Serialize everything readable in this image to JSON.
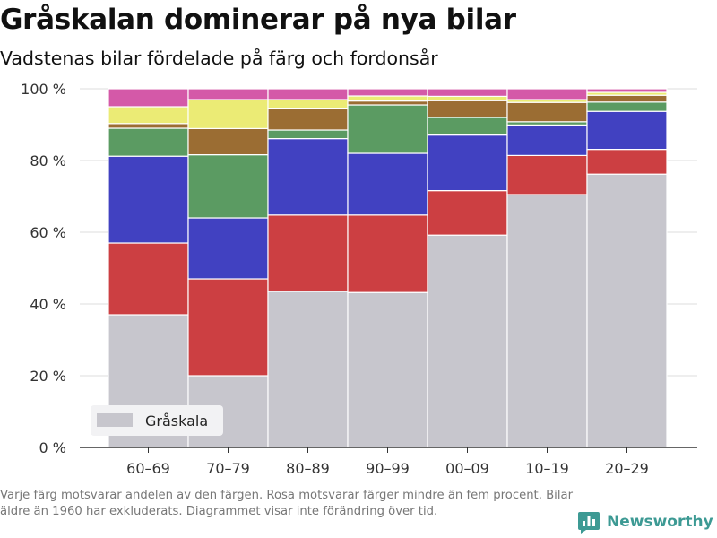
{
  "title": "Gråskalan dominerar på nya bilar",
  "subtitle": "Vadstenas bilar fördelade på färg och fordonsår",
  "footnote": "Varje färg motsvarar andelen av den färgen. Rosa motsvarar färger mindre än fem procent. Bilar äldre än 1960 har exkluderats. Diagrammet visar inte förändring över tid.",
  "brand": {
    "name": "Newsworthy",
    "icon": "newsworthy-logo-icon",
    "color": "#3d9a94"
  },
  "chart_data": {
    "type": "bar",
    "stacked": true,
    "normalized": true,
    "categories": [
      "60–69",
      "70–79",
      "80–89",
      "90–99",
      "00–09",
      "10–19",
      "20–29"
    ],
    "yticks": [
      "0 %",
      "20 %",
      "40 %",
      "60 %",
      "80 %",
      "100 %"
    ],
    "ylim": [
      0,
      100
    ],
    "grid": true,
    "legend_position": "bottom-left",
    "legend": [
      "Gråskala"
    ],
    "series": [
      {
        "name": "Gråskala",
        "color": "#c7c6cd",
        "values": [
          37,
          20,
          43.5,
          43.2,
          59.2,
          70.5,
          76.2
        ]
      },
      {
        "color": "#cc3f42",
        "values": [
          20,
          27,
          21.3,
          21.6,
          12.4,
          10.9,
          6.9
        ]
      },
      {
        "color": "#4141c1",
        "values": [
          24.2,
          17,
          21.3,
          17.2,
          15.5,
          8.5,
          10.6
        ]
      },
      {
        "color": "#5b9b62",
        "values": [
          7.8,
          17.6,
          2.4,
          13.5,
          4.9,
          0.9,
          2.6
        ]
      },
      {
        "color": "#9b6d33",
        "values": [
          1.3,
          7.3,
          5.9,
          1.1,
          4.7,
          5.4,
          1.9
        ]
      },
      {
        "color": "#ebeb75",
        "values": [
          4.7,
          8.1,
          2.6,
          1.4,
          1.2,
          0.8,
          0.8
        ]
      },
      {
        "color": "#d459a8",
        "values": [
          5,
          3,
          3,
          2,
          2.1,
          3,
          1
        ]
      }
    ]
  }
}
